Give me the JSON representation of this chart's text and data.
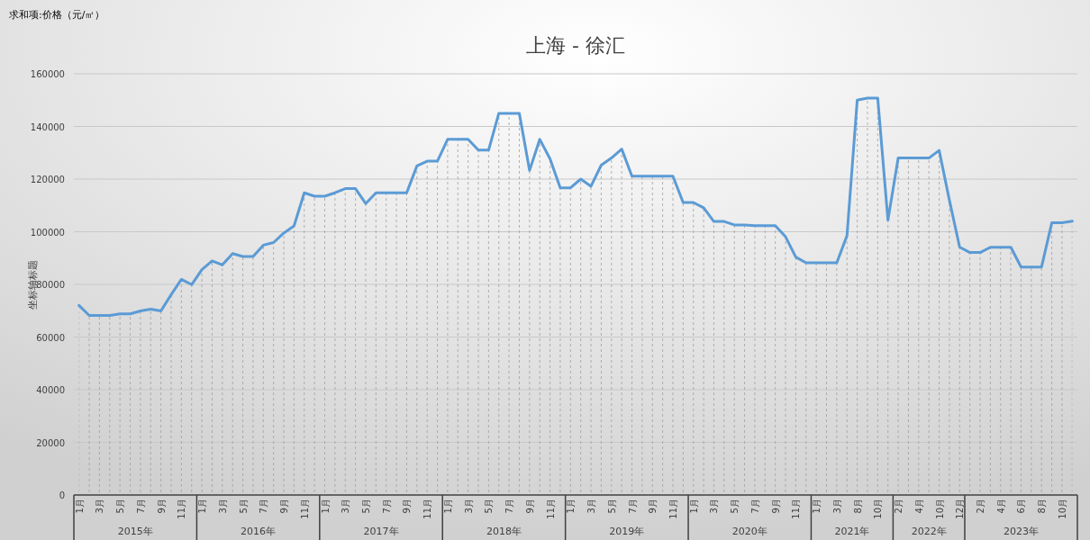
{
  "chart_data": {
    "type": "line",
    "title": "上海 - 徐汇",
    "ylabel": "坐标轴标题",
    "annotations": [
      "求和项:价格（元/㎡）",
      "2015年",
      "2016年",
      "2017年",
      "2018年",
      "2019年",
      "2020年",
      "2021年",
      "2022年",
      "2023年"
    ],
    "categories": [
      "1月",
      null,
      "3月",
      null,
      "5月",
      null,
      "7月",
      null,
      "9月",
      null,
      "11月",
      null,
      "1月",
      null,
      "3月",
      null,
      "5月",
      null,
      "7月",
      null,
      "9月",
      null,
      "11月",
      null,
      "1月",
      null,
      "3月",
      null,
      "5月",
      null,
      "7月",
      null,
      "9月",
      null,
      "11月",
      null,
      "1月",
      null,
      "3月",
      null,
      "5月",
      null,
      "7月",
      null,
      "9月",
      null,
      "11月",
      null,
      "1月",
      null,
      "3月",
      null,
      "5月",
      null,
      "7月",
      null,
      "9月",
      null,
      "11月",
      null,
      "1月",
      null,
      "3月",
      null,
      "5月",
      null,
      "7月",
      null,
      "9月",
      null,
      "11月",
      null,
      "1月",
      null,
      "3月",
      null,
      "8月",
      null,
      "10月",
      null,
      "2月",
      null,
      "4月",
      null,
      "10月",
      null,
      "12月",
      null,
      "2月",
      null,
      "4月",
      null,
      "6月",
      null,
      "8月",
      null,
      "10月",
      null
    ],
    "series": [
      {
        "color": "#5b9bd5",
        "values": [
          72000,
          68200,
          68200,
          68200,
          68800,
          68800,
          69900,
          70600,
          69900,
          76100,
          81900,
          79900,
          85600,
          88900,
          87400,
          91700,
          90600,
          90600,
          94900,
          95900,
          99500,
          102200,
          114800,
          113500,
          113500,
          114800,
          116400,
          116400,
          110700,
          114800,
          114800,
          114800,
          114800,
          125000,
          126800,
          126800,
          135100,
          135100,
          135100,
          131000,
          131000,
          145000,
          145000,
          145000,
          123300,
          135100,
          127700,
          116700,
          116700,
          120000,
          117300,
          125300,
          128000,
          131400,
          121100,
          121100,
          121100,
          121100,
          121100,
          111100,
          111100,
          109100,
          103900,
          103900,
          102600,
          102600,
          102300,
          102300,
          102300,
          98100,
          90400,
          88200,
          88200,
          88200,
          88200,
          98500,
          150000,
          150800,
          150800,
          104400,
          128000,
          128000,
          128000,
          128000,
          130900,
          112000,
          94200,
          92100,
          92100,
          94100,
          94100,
          94100,
          86600,
          86600,
          86600,
          103400,
          103400,
          104000
        ]
      }
    ],
    "ylim": [
      0,
      160000
    ],
    "yticks": [
      0,
      20000,
      40000,
      60000,
      80000,
      100000,
      120000,
      140000,
      160000
    ],
    "grid": true,
    "marker": "none",
    "line_style": "solid"
  }
}
